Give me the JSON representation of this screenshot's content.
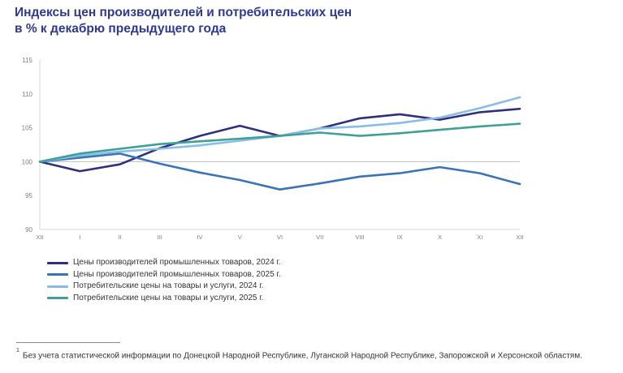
{
  "title_line1": "Индексы цен производителей и потребительских цен",
  "title_line2": "в % к декабрю предыдущего года",
  "footnote": {
    "marker": "1",
    "text": "Без учета статистической информации по Донецкой Народной Республике, Луганской Народной Республике, Запорожской и Херсонской областям."
  },
  "chart_data": {
    "type": "line",
    "title": "Индексы цен производителей и потребительских цен в % к декабрю предыдущего года",
    "categories": [
      "XII",
      "I",
      "II",
      "III",
      "IV",
      "V",
      "VI",
      "VII",
      "VIII",
      "IX",
      "X",
      "XI",
      "XII"
    ],
    "y_ticks": [
      "90",
      "95",
      "100",
      "105",
      "110",
      "115"
    ],
    "ylim": [
      90,
      115
    ],
    "reference_line": 100,
    "grid": false,
    "legend_position": "bottom-left",
    "series": [
      {
        "name": "Цены производителей промышленных товаров, 2024 г.",
        "color": "#2e2f7e",
        "values": [
          100,
          98.6,
          99.6,
          102.0,
          103.8,
          105.3,
          103.8,
          104.9,
          106.4,
          107.0,
          106.2,
          107.3,
          107.8
        ]
      },
      {
        "name": "Цены производителей промышленных товаров, 2025 г.",
        "color": "#3a73b7",
        "values": [
          100,
          100.6,
          101.2,
          99.7,
          98.4,
          97.3,
          95.9,
          96.8,
          97.8,
          98.3,
          99.2,
          98.3,
          96.7
        ]
      },
      {
        "name": "Потребительские цены на товары и услуги, 2024 г.",
        "color": "#88bde9",
        "values": [
          100,
          100.9,
          101.5,
          101.9,
          102.4,
          103.1,
          103.8,
          104.9,
          105.2,
          105.7,
          106.5,
          107.9,
          109.5
        ]
      },
      {
        "name": "Потребительские цены на товары и услуги, 2025 г.",
        "color": "#3da195",
        "values": [
          100,
          101.2,
          101.9,
          102.6,
          103.0,
          103.4,
          103.8,
          104.3,
          103.8,
          104.2,
          104.7,
          105.2,
          105.6
        ]
      }
    ]
  }
}
